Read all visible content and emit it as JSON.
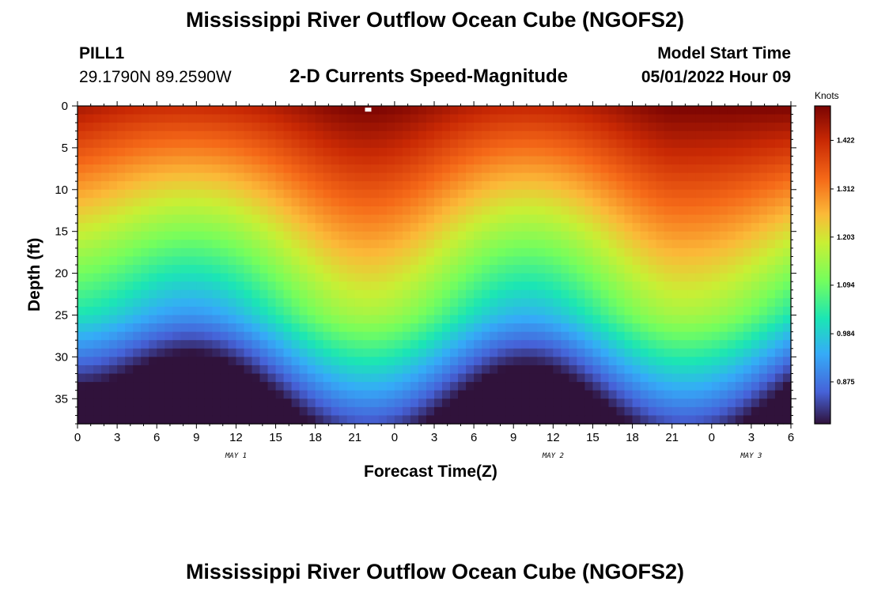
{
  "page": {
    "title": "Mississippi River Outflow Ocean Cube (NGOFS2)",
    "bottom_title": "Mississippi River Outflow Ocean Cube (NGOFS2)",
    "station": {
      "name": "PILL1",
      "coords": "29.1790N  89.2590W"
    },
    "model_start": {
      "label": "Model Start Time",
      "value": "05/01/2022 Hour 09"
    }
  },
  "chart_data": {
    "type": "heatmap",
    "title": "2-D Currents Speed-Magnitude",
    "xlabel": "Forecast Time(Z)",
    "ylabel": "Depth (ft)",
    "x_tick_labels": [
      "0",
      "3",
      "6",
      "9",
      "12",
      "15",
      "18",
      "21",
      "0",
      "3",
      "6",
      "9",
      "12",
      "15",
      "18",
      "21",
      "0",
      "3",
      "6"
    ],
    "x_hours": [
      0,
      54
    ],
    "date_labels": [
      {
        "text": "MAY 1",
        "hour": 12
      },
      {
        "text": "MAY 2",
        "hour": 36
      },
      {
        "text": "MAY 3",
        "hour": 51
      }
    ],
    "y_ticks": [
      0,
      5,
      10,
      15,
      20,
      25,
      30,
      35
    ],
    "ylim": [
      0,
      38
    ],
    "y_inverted": true,
    "colorbar": {
      "title": "Knots",
      "ticks": [
        "1.422",
        "1.312",
        "1.203",
        "1.094",
        "0.984",
        "0.875"
      ],
      "range": [
        0.78,
        1.5
      ]
    },
    "speed_field": {
      "surface_peak_hours": [
        22,
        46
      ],
      "surface_trough_hours": [
        11,
        35
      ],
      "surface_max_knots": 1.49,
      "bottom_min_knots": 0.78,
      "grid_cols": 90,
      "grid_rows": 38
    },
    "marker": {
      "hour": 22.0,
      "depth": 0.3
    }
  }
}
